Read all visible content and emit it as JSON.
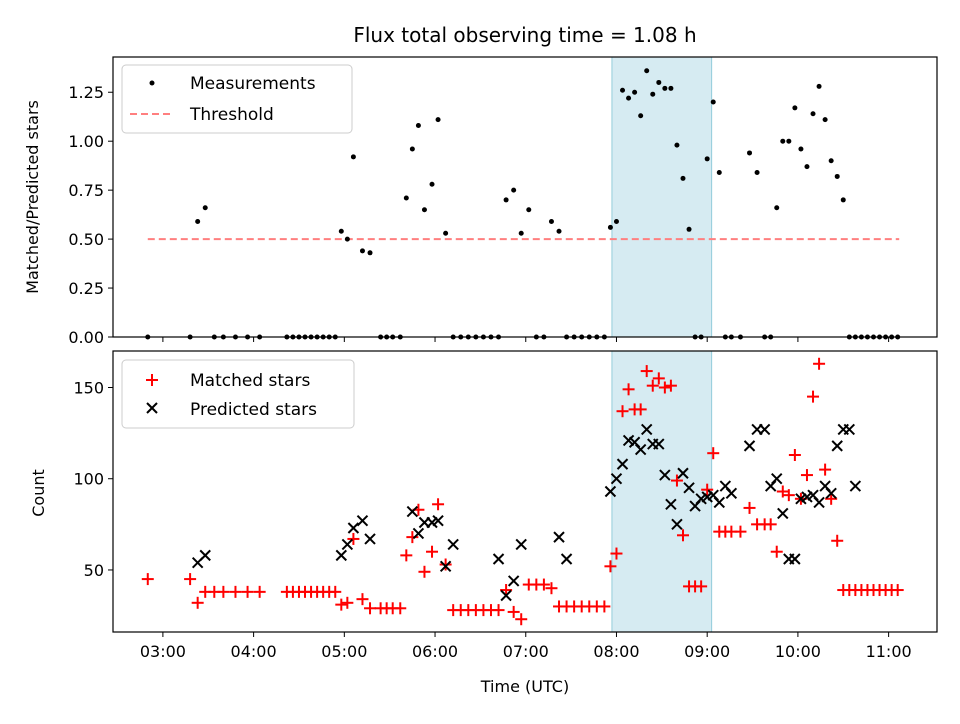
{
  "chart_data": [
    {
      "type": "scatter",
      "title": "Flux total observing time = 1.08 h",
      "ylabel": "Matched/Predicted stars",
      "xlabel": "",
      "xlim": [
        "02:27",
        "11:32"
      ],
      "ylim": [
        0,
        1.43
      ],
      "yticks": [
        "0.00",
        "0.25",
        "0.50",
        "0.75",
        "1.00",
        "1.25"
      ],
      "shaded_span": [
        "07:57",
        "09:03"
      ],
      "legend": {
        "position": "top-left",
        "entries": [
          "Measurements",
          "Threshold"
        ]
      },
      "series": [
        {
          "name": "Threshold",
          "style": "dashed-line",
          "color": "#ff7f7f",
          "x": [
            "02:50",
            "11:07"
          ],
          "values": [
            0.5,
            0.5
          ]
        },
        {
          "name": "Measurements",
          "style": "dot",
          "color": "#000000",
          "x": [
            "02:50",
            "03:18",
            "03:23",
            "03:28",
            "03:34",
            "03:40",
            "03:48",
            "03:56",
            "04:04",
            "04:22",
            "04:26",
            "04:30",
            "04:34",
            "04:38",
            "04:42",
            "04:46",
            "04:50",
            "04:54",
            "04:58",
            "05:02",
            "05:06",
            "05:12",
            "05:17",
            "05:24",
            "05:28",
            "05:32",
            "05:37",
            "05:41",
            "05:45",
            "05:49",
            "05:53",
            "05:58",
            "06:02",
            "06:07",
            "06:12",
            "06:17",
            "06:22",
            "06:27",
            "06:32",
            "06:37",
            "06:42",
            "06:47",
            "06:52",
            "06:57",
            "07:02",
            "07:07",
            "07:12",
            "07:17",
            "07:22",
            "07:27",
            "07:32",
            "07:37",
            "07:42",
            "07:47",
            "07:52",
            "07:56",
            "08:00",
            "08:04",
            "08:08",
            "08:12",
            "08:16",
            "08:20",
            "08:24",
            "08:28",
            "08:32",
            "08:36",
            "08:40",
            "08:44",
            "08:48",
            "08:52",
            "08:56",
            "09:00",
            "09:04",
            "09:08",
            "09:12",
            "09:16",
            "09:22",
            "09:28",
            "09:33",
            "09:38",
            "09:42",
            "09:46",
            "09:50",
            "09:54",
            "09:58",
            "10:02",
            "10:06",
            "10:10",
            "10:14",
            "10:18",
            "10:22",
            "10:26",
            "10:30",
            "10:34",
            "10:38",
            "10:42",
            "10:46",
            "10:50",
            "10:54",
            "10:58",
            "11:02",
            "11:06"
          ],
          "values": [
            0.0,
            0.0,
            0.59,
            0.66,
            0.0,
            0.0,
            0.0,
            0.0,
            0.0,
            0.0,
            0.0,
            0.0,
            0.0,
            0.0,
            0.0,
            0.0,
            0.0,
            0.0,
            0.54,
            0.5,
            0.92,
            0.44,
            0.43,
            0.0,
            0.0,
            0.0,
            0.0,
            0.71,
            0.96,
            1.08,
            0.65,
            0.78,
            1.11,
            0.53,
            0.0,
            0.0,
            0.0,
            0.0,
            0.0,
            0.0,
            0.0,
            0.7,
            0.75,
            0.53,
            0.65,
            0.0,
            0.0,
            0.59,
            0.54,
            0.0,
            0.0,
            0.0,
            0.0,
            0.0,
            0.0,
            0.56,
            0.59,
            1.26,
            1.22,
            1.25,
            1.13,
            1.36,
            1.24,
            1.3,
            1.27,
            1.27,
            0.98,
            0.81,
            0.55,
            0.0,
            0.0,
            0.91,
            1.2,
            0.84,
            0.0,
            0.0,
            0.0,
            0.94,
            0.84,
            0.0,
            0.0,
            0.66,
            1.0,
            1.0,
            1.17,
            0.96,
            0.87,
            1.14,
            1.28,
            1.11,
            0.9,
            0.82,
            0.7,
            0.0,
            0.0,
            0.0,
            0.0,
            0.0,
            0.0,
            0.0,
            0.0,
            0.0
          ]
        }
      ]
    },
    {
      "type": "scatter",
      "title": "",
      "ylabel": "Count",
      "xlabel": "Time (UTC)",
      "xlim": [
        "02:27",
        "11:32"
      ],
      "ylim": [
        16,
        170
      ],
      "yticks": [
        "50",
        "100",
        "150"
      ],
      "xticks": [
        "03:00",
        "04:00",
        "05:00",
        "06:00",
        "07:00",
        "08:00",
        "09:00",
        "10:00",
        "11:00"
      ],
      "shaded_span": [
        "07:57",
        "09:03"
      ],
      "legend": {
        "position": "top-left",
        "entries": [
          "Matched stars",
          "Predicted stars"
        ]
      },
      "series": [
        {
          "name": "Matched stars",
          "marker": "plus",
          "color": "#ff0000",
          "x": [
            "02:50",
            "03:18",
            "03:23",
            "03:28",
            "03:34",
            "03:40",
            "03:48",
            "03:56",
            "04:04",
            "04:22",
            "04:26",
            "04:30",
            "04:34",
            "04:38",
            "04:42",
            "04:46",
            "04:50",
            "04:54",
            "04:58",
            "05:02",
            "05:06",
            "05:12",
            "05:17",
            "05:24",
            "05:28",
            "05:32",
            "05:37",
            "05:41",
            "05:45",
            "05:49",
            "05:53",
            "05:58",
            "06:02",
            "06:07",
            "06:12",
            "06:17",
            "06:22",
            "06:27",
            "06:32",
            "06:37",
            "06:42",
            "06:47",
            "06:52",
            "06:57",
            "07:02",
            "07:07",
            "07:12",
            "07:17",
            "07:22",
            "07:27",
            "07:32",
            "07:37",
            "07:42",
            "07:47",
            "07:52",
            "07:56",
            "08:00",
            "08:04",
            "08:08",
            "08:12",
            "08:16",
            "08:20",
            "08:24",
            "08:28",
            "08:32",
            "08:36",
            "08:40",
            "08:44",
            "08:48",
            "08:52",
            "08:56",
            "09:00",
            "09:04",
            "09:08",
            "09:12",
            "09:16",
            "09:22",
            "09:28",
            "09:33",
            "09:38",
            "09:42",
            "09:46",
            "09:50",
            "09:54",
            "09:58",
            "10:02",
            "10:06",
            "10:10",
            "10:14",
            "10:18",
            "10:22",
            "10:26",
            "10:30",
            "10:34",
            "10:38",
            "10:42",
            "10:46",
            "10:50",
            "10:54",
            "10:58",
            "11:02",
            "11:06"
          ],
          "values": [
            45,
            45,
            32,
            38,
            38,
            38,
            38,
            38,
            38,
            38,
            38,
            38,
            38,
            38,
            38,
            38,
            38,
            38,
            31,
            32,
            67,
            34,
            29,
            29,
            29,
            29,
            29,
            58,
            68,
            83,
            49,
            60,
            86,
            53,
            28,
            28,
            28,
            28,
            28,
            28,
            28,
            39,
            27,
            23,
            42,
            42,
            42,
            40,
            30,
            30,
            30,
            30,
            30,
            30,
            30,
            52,
            59,
            137,
            149,
            138,
            138,
            159,
            151,
            155,
            150,
            151,
            99,
            69,
            41,
            41,
            41,
            94,
            114,
            71,
            71,
            71,
            71,
            84,
            75,
            75,
            75,
            60,
            93,
            91,
            113,
            89,
            102,
            145,
            163,
            105,
            89,
            66,
            39,
            39,
            39,
            39,
            39,
            39,
            39,
            39,
            39,
            39
          ]
        },
        {
          "name": "Predicted stars",
          "marker": "x",
          "color": "#000000",
          "x": [
            "03:23",
            "03:28",
            "04:58",
            "05:02",
            "05:06",
            "05:12",
            "05:17",
            "05:45",
            "05:49",
            "05:53",
            "05:58",
            "06:02",
            "06:07",
            "06:12",
            "06:42",
            "06:47",
            "06:52",
            "06:57",
            "07:22",
            "07:27",
            "07:56",
            "08:00",
            "08:04",
            "08:08",
            "08:12",
            "08:16",
            "08:20",
            "08:24",
            "08:28",
            "08:32",
            "08:36",
            "08:40",
            "08:44",
            "08:48",
            "08:52",
            "08:56",
            "09:00",
            "09:04",
            "09:08",
            "09:12",
            "09:16",
            "09:28",
            "09:33",
            "09:38",
            "09:42",
            "09:46",
            "09:50",
            "09:54",
            "09:58",
            "10:02",
            "10:06",
            "10:10",
            "10:14",
            "10:18",
            "10:22",
            "10:26",
            "10:30",
            "10:34",
            "10:38"
          ],
          "values": [
            54,
            58,
            58,
            64,
            73,
            77,
            67,
            82,
            70,
            76,
            76,
            77,
            52,
            64,
            56,
            36,
            44,
            64,
            68,
            56,
            93,
            100,
            108,
            121,
            120,
            116,
            127,
            119,
            119,
            102,
            86,
            75,
            103,
            95,
            85,
            89,
            90,
            91,
            87,
            96,
            92,
            118,
            127,
            127,
            96,
            100,
            81,
            56,
            56,
            89,
            90,
            91,
            87,
            96,
            92,
            118,
            127,
            127,
            96
          ]
        }
      ]
    }
  ]
}
